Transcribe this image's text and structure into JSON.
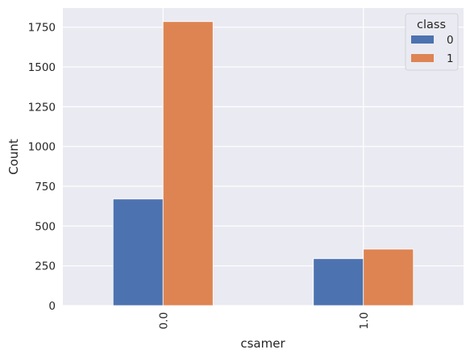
{
  "chart_data": {
    "type": "bar",
    "categories": [
      "0.0",
      "1.0"
    ],
    "series": [
      {
        "name": "0",
        "values": [
          670,
          295
        ],
        "color": "#4C72B0"
      },
      {
        "name": "1",
        "values": [
          1785,
          355
        ],
        "color": "#DD8452"
      }
    ],
    "xlabel": "csamer",
    "ylabel": "Count",
    "ylim": [
      0,
      1870
    ],
    "yticks": [
      0,
      250,
      500,
      750,
      1000,
      1250,
      1500,
      1750
    ],
    "legend": {
      "title": "class",
      "placement": "top-right"
    },
    "grid": true,
    "background": "#EAEAF2"
  }
}
